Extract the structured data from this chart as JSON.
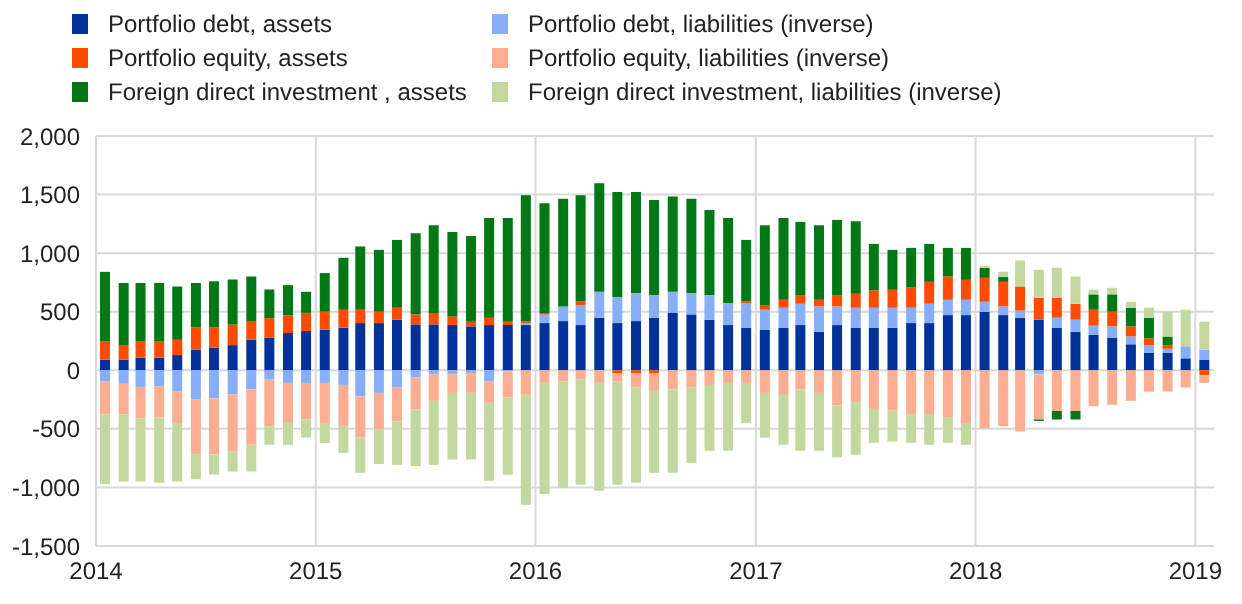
{
  "chart_data": {
    "type": "bar",
    "stacked": true,
    "legend": "top",
    "grid": true,
    "x": [
      "2014-01-15",
      "2014-02-15",
      "2014-03-15",
      "2014-04-15",
      "2014-05-15",
      "2014-06-15",
      "2014-07-15",
      "2014-08-15",
      "2014-09-15",
      "2014-10-15",
      "2014-11-15",
      "2014-12-15",
      "2015-01-15",
      "2015-02-15",
      "2015-03-15",
      "2015-04-15",
      "2015-05-15",
      "2015-06-15",
      "2015-07-15",
      "2015-08-15",
      "2015-09-15",
      "2015-10-15",
      "2015-11-15",
      "2015-12-15",
      "2016-01-15",
      "2016-02-15",
      "2016-03-15",
      "2016-04-15",
      "2016-05-15",
      "2016-06-15",
      "2016-07-15",
      "2016-08-15",
      "2016-09-15",
      "2016-10-15",
      "2016-11-15",
      "2016-12-15",
      "2017-01-15",
      "2017-02-15",
      "2017-03-15",
      "2017-04-15",
      "2017-05-15",
      "2017-06-15",
      "2017-07-15",
      "2017-08-15",
      "2017-09-15",
      "2017-10-15",
      "2017-11-15",
      "2017-12-15",
      "2018-01-15",
      "2018-02-15",
      "2018-03-15",
      "2018-04-15",
      "2018-05-15",
      "2018-06-15",
      "2018-07-15",
      "2018-08-15",
      "2018-09-15",
      "2018-10-15",
      "2018-11-15",
      "2018-12-15",
      "2019-01-15"
    ],
    "xlim": [
      "2014-01",
      "2019-02"
    ],
    "xticks": [
      "2014",
      "2015",
      "2016",
      "2017",
      "2018",
      "2019"
    ],
    "ylim": [
      -1500,
      2000
    ],
    "yticks": [
      {
        "value": -1500,
        "label": "-1,500"
      },
      {
        "value": -1000,
        "label": "-1,000"
      },
      {
        "value": -500,
        "label": "-500"
      },
      {
        "value": 0,
        "label": "0"
      },
      {
        "value": 500,
        "label": "500"
      },
      {
        "value": 1000,
        "label": "1,000"
      },
      {
        "value": 1500,
        "label": "1,500"
      },
      {
        "value": 2000,
        "label": "2,000"
      }
    ],
    "series": [
      {
        "name": "Portfolio debt, assets",
        "color": "#003299",
        "values": [
          90,
          90,
          108,
          108,
          130,
          175,
          193,
          215,
          260,
          280,
          318,
          335,
          347,
          364,
          403,
          403,
          432,
          392,
          392,
          386,
          375,
          386,
          386,
          386,
          403,
          420,
          386,
          449,
          403,
          420,
          449,
          489,
          477,
          432,
          386,
          364,
          347,
          364,
          386,
          329,
          386,
          364,
          364,
          364,
          403,
          403,
          471,
          471,
          500,
          471,
          449,
          432,
          364,
          329,
          301,
          278,
          222,
          148,
          148,
          102,
          91
        ]
      },
      {
        "name": "Portfolio debt, liabilities (inverse)",
        "color": "#87aef9",
        "values": [
          -97,
          -114,
          -148,
          -136,
          -182,
          -250,
          -240,
          -205,
          -165,
          -80,
          -108,
          -108,
          -108,
          -125,
          -222,
          -193,
          -148,
          -62,
          -34,
          -34,
          -23,
          -97,
          -11,
          17,
          74,
          125,
          171,
          221,
          222,
          239,
          193,
          181,
          182,
          210,
          188,
          210,
          170,
          170,
          182,
          216,
          159,
          170,
          170,
          170,
          131,
          165,
          131,
          131,
          85,
          74,
          62,
          -34,
          85,
          103,
          80,
          97,
          68,
          68,
          35,
          103,
          85
        ]
      },
      {
        "name": "Portfolio equity, assets",
        "color": "#ff4b00",
        "values": [
          155,
          125,
          137,
          137,
          130,
          190,
          172,
          175,
          160,
          165,
          152,
          155,
          153,
          153,
          114,
          97,
          102,
          85,
          97,
          74,
          40,
          63,
          29,
          17,
          12,
          0,
          34,
          0,
          -23,
          -23,
          -23,
          0,
          0,
          0,
          0,
          17,
          40,
          68,
          74,
          57,
          97,
          119,
          148,
          153,
          176,
          187,
          199,
          170,
          204,
          210,
          205,
          187,
          170,
          136,
          136,
          125,
          85,
          57,
          30,
          0,
          -40
        ]
      },
      {
        "name": "Portfolio equity, liabilities (inverse)",
        "color": "#fdae91",
        "values": [
          -278,
          -261,
          -261,
          -267,
          -268,
          -466,
          -480,
          -490,
          -471,
          -397,
          -342,
          -312,
          -342,
          -352,
          -353,
          -313,
          -289,
          -273,
          -227,
          -159,
          -170,
          -181,
          -222,
          -210,
          -108,
          -97,
          -80,
          -108,
          -74,
          -125,
          -153,
          -165,
          -148,
          -125,
          -108,
          -108,
          -193,
          -210,
          -165,
          -193,
          -300,
          -270,
          -330,
          -345,
          -380,
          -380,
          -400,
          -450,
          -494,
          -477,
          -523,
          -386,
          -347,
          -347,
          -307,
          -295,
          -261,
          -182,
          -182,
          -148,
          -68
        ]
      },
      {
        "name": "Foreign direct investment , assets",
        "color": "#007816",
        "values": [
          595,
          530,
          500,
          500,
          455,
          380,
          395,
          385,
          380,
          245,
          257,
          180,
          330,
          443,
          540,
          528,
          579,
          693,
          749,
          721,
          732,
          851,
          885,
          1074,
          937,
          920,
          903,
          926,
          897,
          863,
          812,
          813,
          806,
          727,
          726,
          522,
          681,
          698,
          625,
          636,
          642,
          619,
          397,
          341,
          335,
          324,
          244,
          273,
          86,
          41,
          null,
          -12,
          -73,
          -73,
          131,
          148,
          159,
          176,
          75,
          0,
          0
        ]
      },
      {
        "name": "Foreign direct investment, liabilities (inverse)",
        "color": "#c2d89f",
        "values": [
          -596,
          -575,
          -541,
          -557,
          -500,
          -214,
          -170,
          -170,
          -229,
          -159,
          -186,
          -155,
          -170,
          -228,
          -300,
          -294,
          -370,
          -483,
          -546,
          -568,
          -568,
          -665,
          -659,
          -937,
          -949,
          -908,
          -897,
          -920,
          -880,
          -812,
          -699,
          -710,
          -642,
          -562,
          -579,
          -341,
          -381,
          -426,
          -522,
          -494,
          -444,
          -451,
          -289,
          -263,
          -239,
          -256,
          -219,
          -186,
          17,
          45,
          222,
          239,
          256,
          233,
          40,
          56,
          51,
          85,
          210,
          312,
          239
        ]
      }
    ]
  }
}
